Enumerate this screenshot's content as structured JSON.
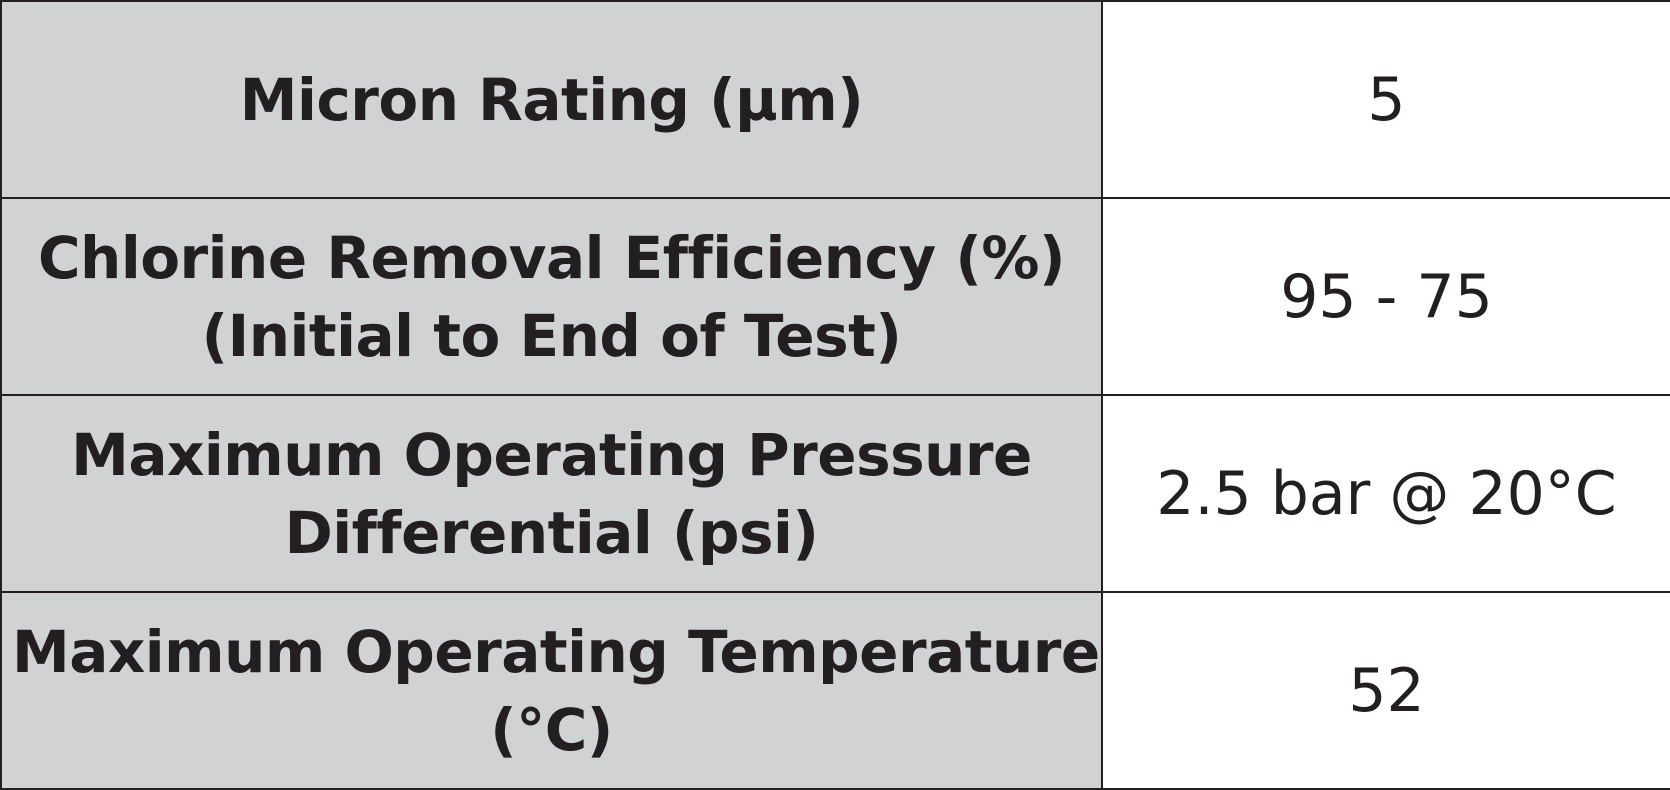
{
  "spec_table": {
    "rows": [
      {
        "label_lines": [
          "Micron Rating (µm)"
        ],
        "value": "5"
      },
      {
        "label_lines": [
          "Chlorine Removal Efficiency (%)",
          "(Initial to End of Test)"
        ],
        "value": "95 - 75"
      },
      {
        "label_lines": [
          "Maximum Operating Pressure",
          "Differential (psi)"
        ],
        "value": "2.5 bar @ 20°C"
      },
      {
        "label_lines": [
          "Maximum Operating Temperature",
          "(°C)"
        ],
        "value": "52"
      }
    ]
  },
  "colors": {
    "label_background": "#d1d2d4",
    "value_background": "#ffffff",
    "text": "#231f20",
    "border": "#231f20"
  }
}
